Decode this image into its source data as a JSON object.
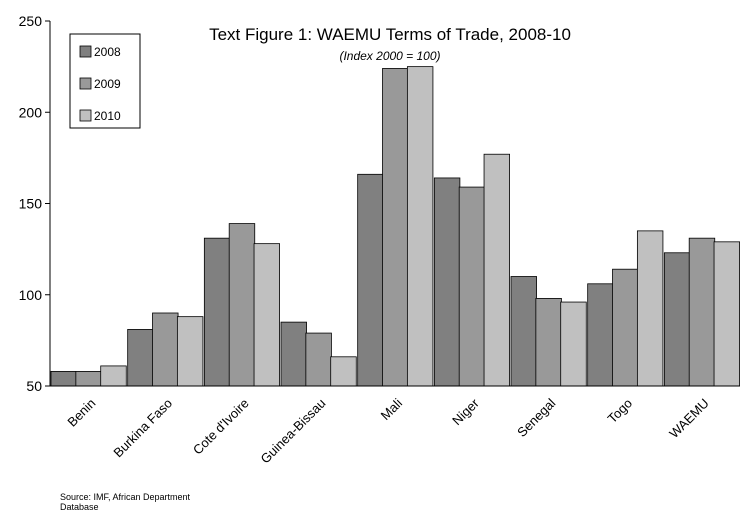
{
  "chart_data": {
    "type": "bar",
    "title": "Text Figure 1: WAEMU Terms of Trade, 2008-10",
    "subtitle": "(Index 2000 = 100)",
    "source": "Source: IMF, African Department Database",
    "categories": [
      "Benin",
      "Burkina Faso",
      "Cote d'Ivoire",
      "Guinea-Bissau",
      "Mali",
      "Niger",
      "Senegal",
      "Togo",
      "WAEMU"
    ],
    "series": [
      {
        "name": "2008",
        "color": "#808080",
        "values": [
          58,
          81,
          131,
          85,
          166,
          164,
          110,
          106,
          123
        ]
      },
      {
        "name": "2009",
        "color": "#999999",
        "values": [
          58,
          90,
          139,
          79,
          224,
          159,
          98,
          114,
          131
        ]
      },
      {
        "name": "2010",
        "color": "#c0c0c0",
        "values": [
          61,
          88,
          128,
          66,
          225,
          177,
          96,
          135,
          129
        ]
      }
    ],
    "ylim": [
      50,
      250
    ],
    "yticks": [
      50,
      100,
      150,
      200,
      250
    ],
    "grid": false,
    "legend": "top-left"
  }
}
